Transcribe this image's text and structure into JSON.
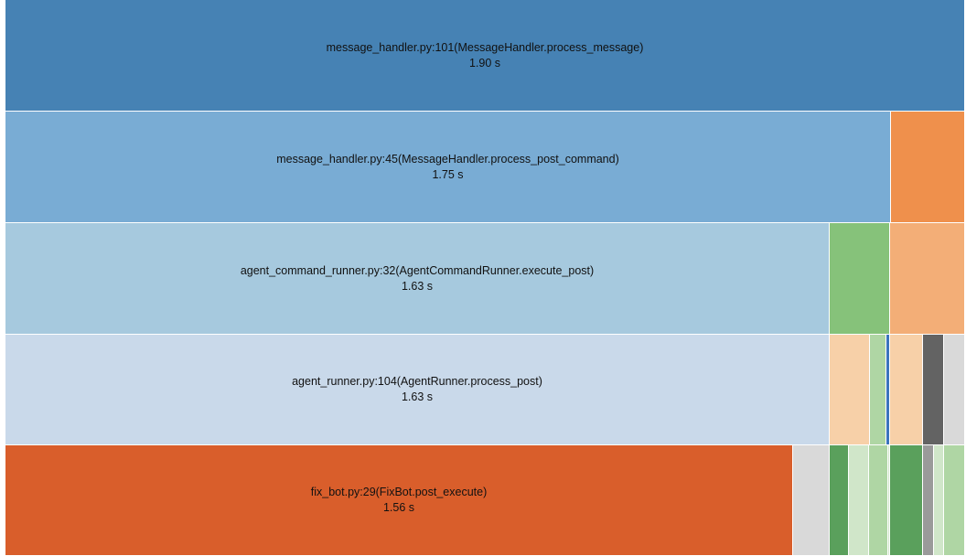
{
  "rows": [
    {
      "blocks": [
        {
          "name": "message_handler.py:101(MessageHandler.process_message)",
          "time": "1.90 s",
          "color": "#4682b4"
        }
      ]
    },
    {
      "blocks": [
        {
          "name": "message_handler.py:45(MessageHandler.process_post_command)",
          "time": "1.75 s",
          "color": "#79acd4"
        },
        {
          "name": "",
          "time": "",
          "color": "#ef904c"
        }
      ]
    },
    {
      "blocks": [
        {
          "name": "agent_command_runner.py:32(AgentCommandRunner.execute_post)",
          "time": "1.63 s",
          "color": "#a6c9de"
        },
        {
          "name": "",
          "time": "",
          "color": "#86c27a"
        },
        {
          "name": "",
          "time": "",
          "color": "#f3ae77"
        }
      ]
    },
    {
      "blocks": [
        {
          "name": "agent_runner.py:104(AgentRunner.process_post)",
          "time": "1.63 s",
          "color": "#c9d9ea"
        },
        {
          "name": "",
          "time": "",
          "color": "#f7d0a8"
        },
        {
          "name": "",
          "time": "",
          "color": "#afd6a4"
        },
        {
          "name": "",
          "time": "",
          "color": "#3b73bd"
        },
        {
          "name": "",
          "time": "",
          "color": "#f7d0a8"
        },
        {
          "name": "",
          "time": "",
          "color": "#636363"
        },
        {
          "name": "",
          "time": "",
          "color": "#d9d9d9"
        }
      ]
    },
    {
      "blocks": [
        {
          "name": "fix_bot.py:29(FixBot.post_execute)",
          "time": "1.56 s",
          "color": "#d95e2b"
        },
        {
          "name": "",
          "time": "",
          "color": "#d9d9d9"
        },
        {
          "name": "",
          "time": "",
          "color": "#5aa05c"
        },
        {
          "name": "",
          "time": "",
          "color": "#d0e6c9"
        },
        {
          "name": "",
          "time": "",
          "color": "#afd6a4"
        },
        {
          "name": "",
          "time": "",
          "color": "#d0e6c9"
        },
        {
          "name": "",
          "time": "",
          "color": "#5aa05c"
        },
        {
          "name": "",
          "time": "",
          "color": "#9a9a9a"
        },
        {
          "name": "",
          "time": "",
          "color": "#d0e6c9"
        },
        {
          "name": "",
          "time": "",
          "color": "#afd6a4"
        }
      ]
    }
  ]
}
